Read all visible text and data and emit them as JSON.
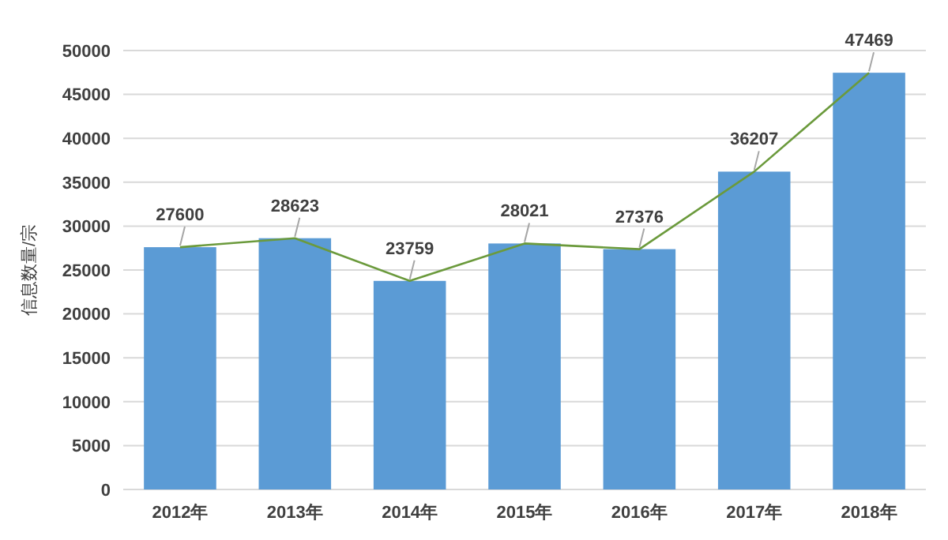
{
  "chart_data": {
    "type": "bar",
    "ylabel": "信息数量/宗",
    "categories": [
      "2012年",
      "2013年",
      "2014年",
      "2015年",
      "2016年",
      "2017年",
      "2018年"
    ],
    "series": [
      {
        "type": "line",
        "color": "#6b9a3c",
        "values": [
          27600,
          28623,
          23759,
          28021,
          27376,
          36207,
          47469
        ]
      },
      {
        "color": "#5b9bd5",
        "values": [
          27600,
          28623,
          23759,
          28021,
          27376,
          36207,
          47469
        ],
        "value_labels": [
          "27600",
          "28623",
          "23759",
          "28021",
          "27376",
          "36207",
          "47469"
        ]
      }
    ],
    "ylim": [
      0,
      50000
    ],
    "yticks": [
      0,
      5000,
      10000,
      15000,
      20000,
      25000,
      30000,
      35000,
      40000,
      45000,
      50000
    ],
    "grid": "y"
  }
}
